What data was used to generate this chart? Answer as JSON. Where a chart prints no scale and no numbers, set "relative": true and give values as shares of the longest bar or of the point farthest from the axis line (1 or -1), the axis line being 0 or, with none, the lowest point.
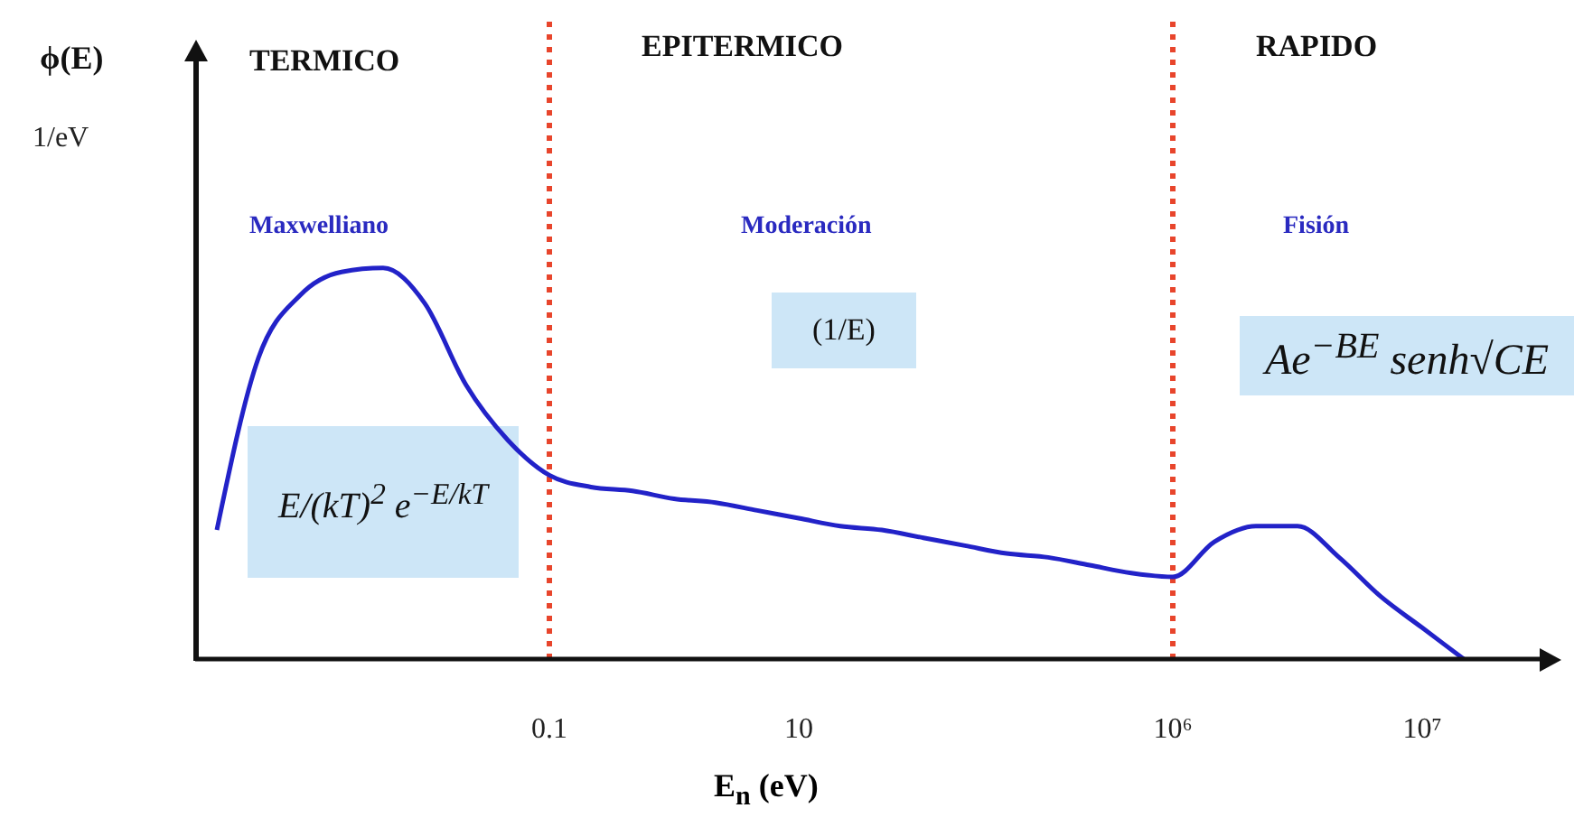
{
  "chart_data": {
    "type": "line",
    "relative": true,
    "xlabel": "E$_{n}$ (eV)",
    "categories": [
      null,
      null,
      null,
      null,
      null,
      null,
      null,
      null,
      "0.1",
      null,
      null,
      null,
      null,
      null,
      "10",
      null,
      null,
      null,
      null,
      null,
      null,
      null,
      null,
      "10⁶",
      null,
      null,
      null,
      null,
      null,
      "10⁷",
      null
    ],
    "series": [
      {
        "color": "#2222c8",
        "values": [
          0.33,
          0.77,
          0.93,
          0.99,
          1.0,
          0.91,
          0.7,
          0.56,
          0.47,
          0.44,
          0.43,
          0.41,
          0.4,
          0.38,
          0.36,
          0.34,
          0.33,
          0.31,
          0.29,
          0.27,
          0.26,
          0.24,
          0.22,
          0.21,
          0.3,
          0.34,
          0.34,
          0.26,
          0.16,
          0.08,
          0
        ]
      }
    ],
    "ref_lines": [
      {
        "axis": "x",
        "value": "0.1",
        "color": "#e8452c",
        "line_style": "dotted"
      },
      {
        "axis": "x",
        "value": "10⁶",
        "color": "#e8452c",
        "line_style": "dotted"
      }
    ],
    "annotations": [
      "ϕ(E)",
      "1/eV",
      "TERMICO",
      "EPITERMICO",
      "RAPIDO",
      "Maxwelliano",
      "Moderación",
      "Fisión",
      "E/(kT)$^{2}$ e$^{−E/kT}$",
      "(1/E)",
      "Ae$^{−BE}$ senh√CE"
    ],
    "marker": "none",
    "line_style": "solid"
  }
}
